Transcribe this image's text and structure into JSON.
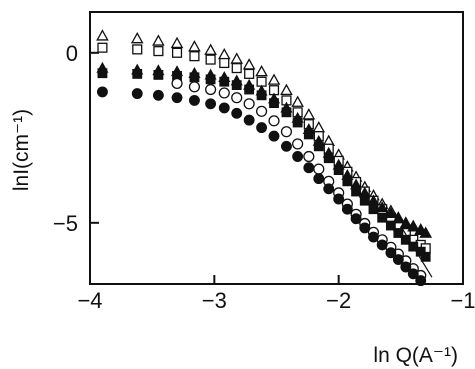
{
  "chart_data": {
    "type": "scatter",
    "title": "",
    "xlabel": "ln Q(A⁻¹)",
    "ylabel": "lnI(cm⁻¹)",
    "xlim": [
      -4,
      -1
    ],
    "ylim": [
      -6.8,
      1.2
    ],
    "x_ticks": [
      -4,
      -3,
      -2,
      -1
    ],
    "y_ticks": [
      0,
      -5
    ],
    "x_tick_labels": [
      "−4",
      "−3",
      "−2",
      "−1"
    ],
    "y_tick_labels": [
      "0",
      "−5"
    ],
    "grid": false,
    "legend": "none",
    "series": [
      {
        "marker": "open-triangle",
        "points": [
          [
            -3.9,
            0.5
          ],
          [
            -3.62,
            0.42
          ],
          [
            -3.45,
            0.35
          ],
          [
            -3.3,
            0.28
          ],
          [
            -3.16,
            0.18
          ],
          [
            -3.03,
            0.08
          ],
          [
            -2.92,
            -0.05
          ],
          [
            -2.82,
            -0.18
          ],
          [
            -2.72,
            -0.35
          ],
          [
            -2.62,
            -0.55
          ],
          [
            -2.52,
            -0.8
          ],
          [
            -2.42,
            -1.1
          ],
          [
            -2.33,
            -1.45
          ],
          [
            -2.24,
            -1.82
          ],
          [
            -2.16,
            -2.2
          ],
          [
            -2.08,
            -2.6
          ],
          [
            -2.0,
            -3.0
          ],
          [
            -1.93,
            -3.35
          ],
          [
            -1.86,
            -3.65
          ],
          [
            -1.79,
            -3.95
          ],
          [
            -1.72,
            -4.2
          ],
          [
            -1.65,
            -4.45
          ],
          [
            -1.58,
            -4.65
          ],
          [
            -1.52,
            -4.85
          ],
          [
            -1.46,
            -5.0
          ],
          [
            -1.4,
            -5.1
          ],
          [
            -1.34,
            -5.2
          ],
          [
            -1.3,
            -5.3
          ]
        ]
      },
      {
        "marker": "open-square",
        "points": [
          [
            -3.9,
            0.15
          ],
          [
            -3.62,
            0.1
          ],
          [
            -3.45,
            0.05
          ],
          [
            -3.3,
            0.0
          ],
          [
            -3.16,
            -0.1
          ],
          [
            -3.03,
            -0.2
          ],
          [
            -2.92,
            -0.3
          ],
          [
            -2.82,
            -0.45
          ],
          [
            -2.72,
            -0.62
          ],
          [
            -2.62,
            -0.85
          ],
          [
            -2.52,
            -1.1
          ],
          [
            -2.42,
            -1.4
          ],
          [
            -2.33,
            -1.75
          ],
          [
            -2.24,
            -2.1
          ],
          [
            -2.16,
            -2.45
          ],
          [
            -2.08,
            -2.82
          ],
          [
            -2.0,
            -3.18
          ],
          [
            -1.93,
            -3.5
          ],
          [
            -1.86,
            -3.8
          ],
          [
            -1.79,
            -4.08
          ],
          [
            -1.72,
            -4.35
          ],
          [
            -1.65,
            -4.6
          ],
          [
            -1.58,
            -4.85
          ],
          [
            -1.52,
            -5.1
          ],
          [
            -1.46,
            -5.3
          ],
          [
            -1.4,
            -5.5
          ],
          [
            -1.34,
            -5.65
          ],
          [
            -1.3,
            -5.75
          ]
        ]
      },
      {
        "marker": "filled-triangle",
        "points": [
          [
            -3.9,
            -0.45
          ],
          [
            -3.62,
            -0.5
          ],
          [
            -3.45,
            -0.52
          ],
          [
            -3.3,
            -0.55
          ],
          [
            -3.16,
            -0.6
          ],
          [
            -3.03,
            -0.65
          ],
          [
            -2.92,
            -0.72
          ],
          [
            -2.82,
            -0.82
          ],
          [
            -2.72,
            -0.95
          ],
          [
            -2.62,
            -1.12
          ],
          [
            -2.52,
            -1.35
          ],
          [
            -2.42,
            -1.62
          ],
          [
            -2.33,
            -1.92
          ],
          [
            -2.24,
            -2.25
          ],
          [
            -2.16,
            -2.6
          ],
          [
            -2.08,
            -2.95
          ],
          [
            -2.0,
            -3.3
          ],
          [
            -1.93,
            -3.6
          ],
          [
            -1.86,
            -3.88
          ],
          [
            -1.79,
            -4.12
          ],
          [
            -1.72,
            -4.35
          ],
          [
            -1.65,
            -4.55
          ],
          [
            -1.58,
            -4.72
          ],
          [
            -1.52,
            -4.88
          ],
          [
            -1.46,
            -5.02
          ],
          [
            -1.4,
            -5.12
          ],
          [
            -1.34,
            -5.22
          ],
          [
            -1.3,
            -5.3
          ]
        ]
      },
      {
        "marker": "filled-square",
        "points": [
          [
            -3.9,
            -0.6
          ],
          [
            -3.62,
            -0.62
          ],
          [
            -3.45,
            -0.65
          ],
          [
            -3.3,
            -0.68
          ],
          [
            -3.16,
            -0.72
          ],
          [
            -3.03,
            -0.78
          ],
          [
            -2.92,
            -0.85
          ],
          [
            -2.82,
            -0.95
          ],
          [
            -2.72,
            -1.08
          ],
          [
            -2.62,
            -1.25
          ],
          [
            -2.52,
            -1.48
          ],
          [
            -2.42,
            -1.75
          ],
          [
            -2.33,
            -2.05
          ],
          [
            -2.24,
            -2.4
          ],
          [
            -2.16,
            -2.75
          ],
          [
            -2.08,
            -3.1
          ],
          [
            -2.0,
            -3.45
          ],
          [
            -1.93,
            -3.78
          ],
          [
            -1.86,
            -4.08
          ],
          [
            -1.79,
            -4.35
          ],
          [
            -1.72,
            -4.6
          ],
          [
            -1.65,
            -4.85
          ],
          [
            -1.58,
            -5.08
          ],
          [
            -1.52,
            -5.3
          ],
          [
            -1.46,
            -5.5
          ],
          [
            -1.4,
            -5.7
          ],
          [
            -1.34,
            -5.85
          ],
          [
            -1.3,
            -6.0
          ]
        ]
      },
      {
        "marker": "open-circle",
        "points": [
          [
            -3.3,
            -0.9
          ],
          [
            -3.16,
            -1.0
          ],
          [
            -3.03,
            -1.08
          ],
          [
            -2.92,
            -1.18
          ],
          [
            -2.82,
            -1.32
          ],
          [
            -2.72,
            -1.5
          ],
          [
            -2.62,
            -1.72
          ],
          [
            -2.52,
            -2.0
          ],
          [
            -2.42,
            -2.32
          ],
          [
            -2.33,
            -2.68
          ],
          [
            -2.24,
            -3.05
          ],
          [
            -2.16,
            -3.42
          ],
          [
            -2.08,
            -3.78
          ],
          [
            -2.0,
            -4.12
          ],
          [
            -1.93,
            -4.45
          ],
          [
            -1.86,
            -4.75
          ],
          [
            -1.79,
            -5.02
          ],
          [
            -1.72,
            -5.28
          ],
          [
            -1.65,
            -5.5
          ],
          [
            -1.58,
            -5.72
          ],
          [
            -1.52,
            -5.92
          ],
          [
            -1.46,
            -6.12
          ],
          [
            -1.4,
            -6.35
          ],
          [
            -1.34,
            -6.55
          ]
        ]
      },
      {
        "marker": "filled-circle",
        "points": [
          [
            -3.9,
            -1.15
          ],
          [
            -3.62,
            -1.2
          ],
          [
            -3.45,
            -1.25
          ],
          [
            -3.3,
            -1.32
          ],
          [
            -3.16,
            -1.4
          ],
          [
            -3.03,
            -1.5
          ],
          [
            -2.92,
            -1.62
          ],
          [
            -2.82,
            -1.78
          ],
          [
            -2.72,
            -1.98
          ],
          [
            -2.62,
            -2.2
          ],
          [
            -2.52,
            -2.45
          ],
          [
            -2.42,
            -2.75
          ],
          [
            -2.33,
            -3.05
          ],
          [
            -2.24,
            -3.38
          ],
          [
            -2.16,
            -3.7
          ],
          [
            -2.08,
            -4.0
          ],
          [
            -2.0,
            -4.3
          ],
          [
            -1.93,
            -4.6
          ],
          [
            -1.86,
            -4.88
          ],
          [
            -1.79,
            -5.15
          ],
          [
            -1.72,
            -5.42
          ],
          [
            -1.65,
            -5.65
          ],
          [
            -1.58,
            -5.88
          ],
          [
            -1.52,
            -6.08
          ],
          [
            -1.46,
            -6.3
          ],
          [
            -1.4,
            -6.5
          ],
          [
            -1.34,
            -6.7
          ]
        ]
      }
    ],
    "fit_line": [
      [
        -1.5,
        -5.1
      ],
      [
        -1.25,
        -6.6
      ]
    ]
  }
}
